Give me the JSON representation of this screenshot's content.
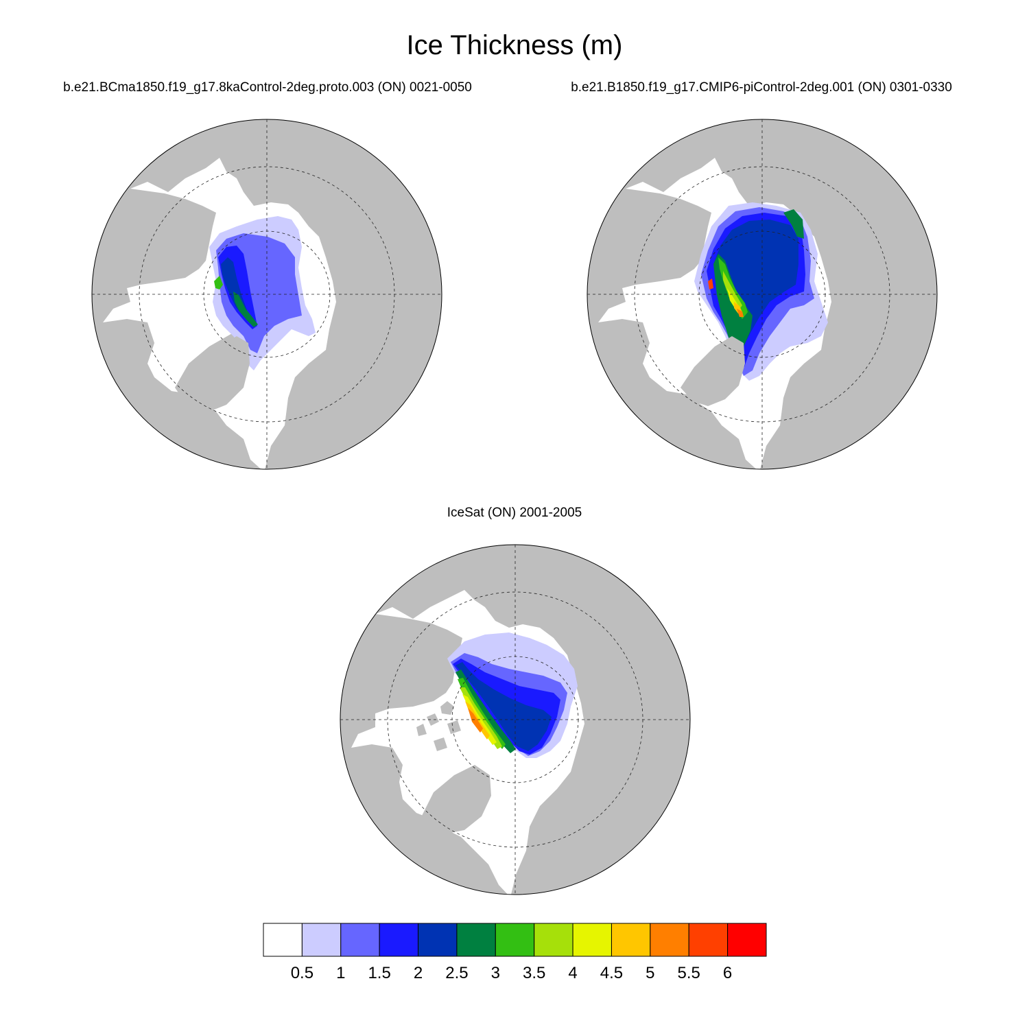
{
  "title": "Ice Thickness (m)",
  "panels": {
    "left": {
      "subtitle": "b.e21.BCma1850.f19_g17.8kaControl-2deg.proto.003 (ON) 0021-0050"
    },
    "right": {
      "subtitle": "b.e21.B1850.f19_g17.CMIP6-piControl-2deg.001 (ON) 0301-0330"
    },
    "bottom": {
      "subtitle": "IceSat (ON) 2001-2005"
    }
  },
  "colors": {
    "land": "#bebebe",
    "ocean": "#ffffff",
    "scale": [
      "#ffffff",
      "#ccccff",
      "#6666ff",
      "#1a1aff",
      "#0033b3",
      "#008040",
      "#33bf13",
      "#a6e00a",
      "#e6f500",
      "#ffc600",
      "#ff7f00",
      "#ff4000",
      "#ff0000"
    ]
  },
  "colorbar": {
    "levels": [
      "0.5",
      "1",
      "1.5",
      "2",
      "2.5",
      "3",
      "3.5",
      "4",
      "4.5",
      "5",
      "5.5",
      "6"
    ]
  }
}
